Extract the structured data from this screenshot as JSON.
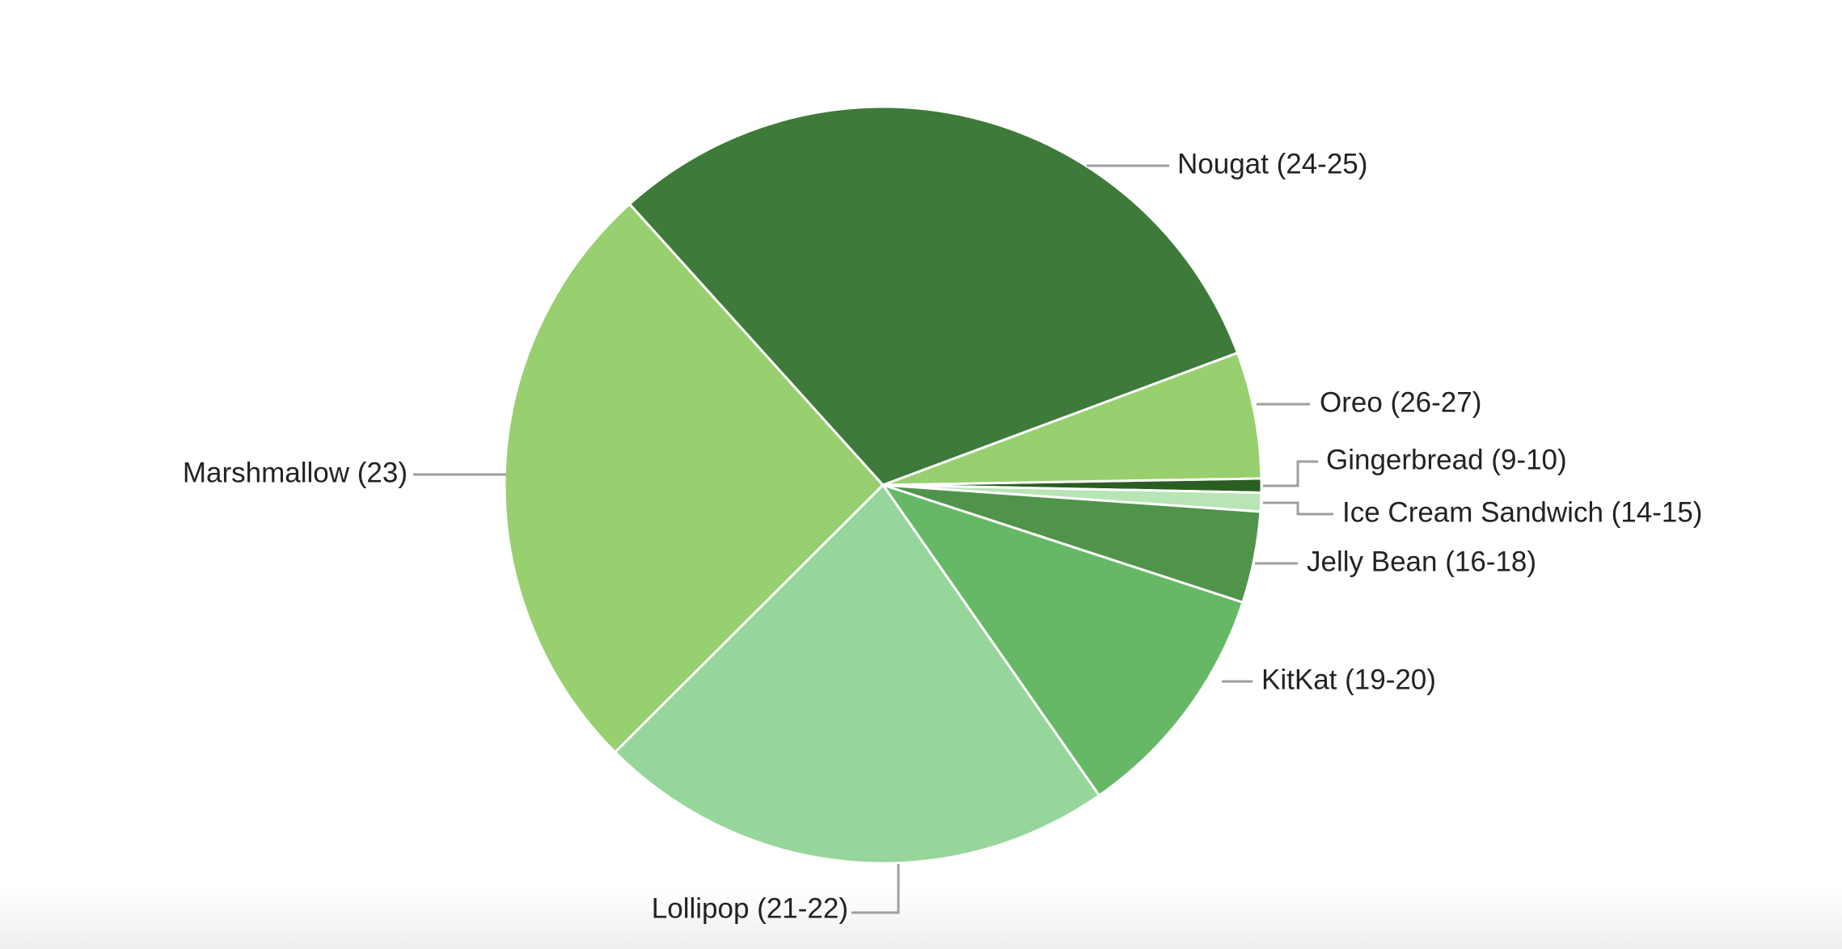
{
  "chart_data": {
    "type": "pie",
    "categories": [
      "Gingerbread (9-10)",
      "Ice Cream Sandwich (14-15)",
      "Jelly Bean (16-18)",
      "KitKat (19-20)",
      "Lollipop (21-22)",
      "Marshmallow (23)",
      "Nougat (24-25)",
      "Oreo (26-27)"
    ],
    "values": [
      0.6,
      0.8,
      3.9,
      10.3,
      22.2,
      25.8,
      31.0,
      5.4
    ],
    "colors": [
      "#2b5e22",
      "#b7e5b5",
      "#4f944a",
      "#66b866",
      "#96d69a",
      "#98cf6f",
      "#3e7a39",
      "#98cf6f"
    ]
  }
}
